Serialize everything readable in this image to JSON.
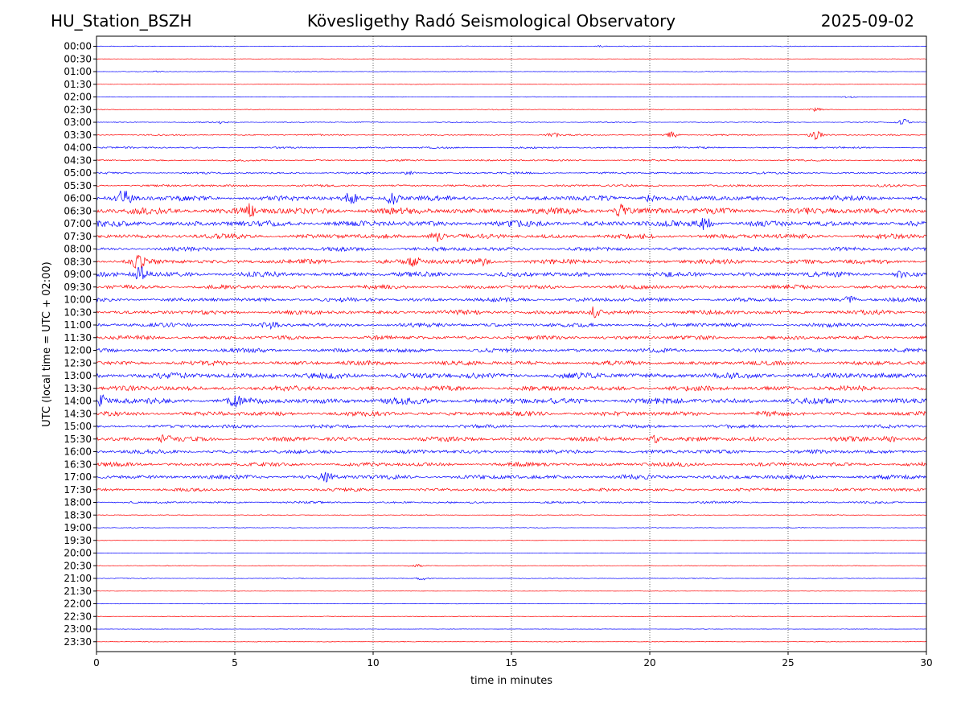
{
  "header": {
    "station": "HU_Station_BSZH",
    "title": "Kövesligethy Radó Seismological Observatory",
    "date": "2025-09-02"
  },
  "colors": {
    "even_row": "#0000ff",
    "odd_row": "#ff0000",
    "axis": "#000000",
    "grid": "#000000"
  },
  "chart_data": {
    "type": "line",
    "title": "Kövesligethy Radó Seismological Observatory",
    "xlabel": "time in minutes",
    "ylabel": "UTC (local time = UTC + 02:00)",
    "xlim": [
      0,
      30
    ],
    "xticks": [
      0,
      5,
      10,
      15,
      20,
      25,
      30
    ],
    "grid": "vertical dotted lines at x = 5, 10, 15, 20, 25",
    "rows": [
      "00:00",
      "00:30",
      "01:00",
      "01:30",
      "02:00",
      "02:30",
      "03:00",
      "03:30",
      "04:00",
      "04:30",
      "05:00",
      "05:30",
      "06:00",
      "06:30",
      "07:00",
      "07:30",
      "08:00",
      "08:30",
      "09:00",
      "09:30",
      "10:00",
      "10:30",
      "11:00",
      "11:30",
      "12:00",
      "12:30",
      "13:00",
      "13:30",
      "14:00",
      "14:30",
      "15:00",
      "15:30",
      "16:00",
      "16:30",
      "17:00",
      "17:30",
      "18:00",
      "18:30",
      "19:00",
      "19:30",
      "20:00",
      "20:30",
      "21:00",
      "21:30",
      "22:00",
      "22:30",
      "23:00",
      "23:30"
    ],
    "row_noise_level": [
      0.05,
      0.03,
      0.04,
      0.03,
      0.04,
      0.06,
      0.07,
      0.1,
      0.12,
      0.12,
      0.14,
      0.16,
      0.35,
      0.45,
      0.4,
      0.33,
      0.28,
      0.33,
      0.35,
      0.28,
      0.28,
      0.3,
      0.28,
      0.28,
      0.28,
      0.3,
      0.4,
      0.35,
      0.42,
      0.32,
      0.25,
      0.32,
      0.28,
      0.28,
      0.3,
      0.22,
      0.15,
      0.06,
      0.05,
      0.03,
      0.04,
      0.05,
      0.05,
      0.03,
      0.04,
      0.04,
      0.03,
      0.04
    ],
    "events": [
      {
        "row": "00:00",
        "minute": 18.2,
        "amplitude": 0.1
      },
      {
        "row": "01:00",
        "minute": 2.2,
        "amplitude": 0.1
      },
      {
        "row": "02:00",
        "minute": 27.2,
        "amplitude": 0.15
      },
      {
        "row": "02:30",
        "minute": 26.0,
        "amplitude": 0.25
      },
      {
        "row": "03:00",
        "minute": 4.5,
        "amplitude": 0.18
      },
      {
        "row": "03:00",
        "minute": 29.2,
        "amplitude": 0.5
      },
      {
        "row": "03:30",
        "minute": 16.5,
        "amplitude": 0.3
      },
      {
        "row": "03:30",
        "minute": 20.8,
        "amplitude": 0.45
      },
      {
        "row": "03:30",
        "minute": 26.0,
        "amplitude": 0.75
      },
      {
        "row": "05:00",
        "minute": 11.3,
        "amplitude": 0.3
      },
      {
        "row": "06:00",
        "minute": 1.0,
        "amplitude": 1.3
      },
      {
        "row": "06:00",
        "minute": 9.2,
        "amplitude": 0.8
      },
      {
        "row": "06:00",
        "minute": 10.7,
        "amplitude": 1.0
      },
      {
        "row": "06:00",
        "minute": 20.0,
        "amplitude": 0.6
      },
      {
        "row": "06:30",
        "minute": 5.5,
        "amplitude": 0.9
      },
      {
        "row": "06:30",
        "minute": 19.0,
        "amplitude": 0.9
      },
      {
        "row": "07:00",
        "minute": 22.0,
        "amplitude": 0.9
      },
      {
        "row": "07:30",
        "minute": 12.3,
        "amplitude": 0.9
      },
      {
        "row": "08:30",
        "minute": 1.5,
        "amplitude": 0.8
      },
      {
        "row": "08:30",
        "minute": 11.5,
        "amplitude": 0.6
      },
      {
        "row": "08:30",
        "minute": 14.0,
        "amplitude": 0.6
      },
      {
        "row": "09:00",
        "minute": 1.6,
        "amplitude": 1.0
      },
      {
        "row": "09:00",
        "minute": 29.0,
        "amplitude": 0.4
      },
      {
        "row": "10:00",
        "minute": 27.2,
        "amplitude": 0.45
      },
      {
        "row": "10:30",
        "minute": 18.0,
        "amplitude": 0.7
      },
      {
        "row": "11:00",
        "minute": 6.3,
        "amplitude": 0.45
      },
      {
        "row": "14:00",
        "minute": 0.2,
        "amplitude": 0.6
      },
      {
        "row": "14:00",
        "minute": 5.0,
        "amplitude": 0.6
      },
      {
        "row": "15:30",
        "minute": 2.5,
        "amplitude": 0.5
      },
      {
        "row": "15:30",
        "minute": 20.2,
        "amplitude": 0.5
      },
      {
        "row": "15:30",
        "minute": 28.7,
        "amplitude": 0.5
      },
      {
        "row": "17:00",
        "minute": 8.3,
        "amplitude": 0.6
      },
      {
        "row": "20:30",
        "minute": 11.5,
        "amplitude": 0.3
      },
      {
        "row": "21:00",
        "minute": 11.8,
        "amplitude": 0.25
      }
    ]
  }
}
